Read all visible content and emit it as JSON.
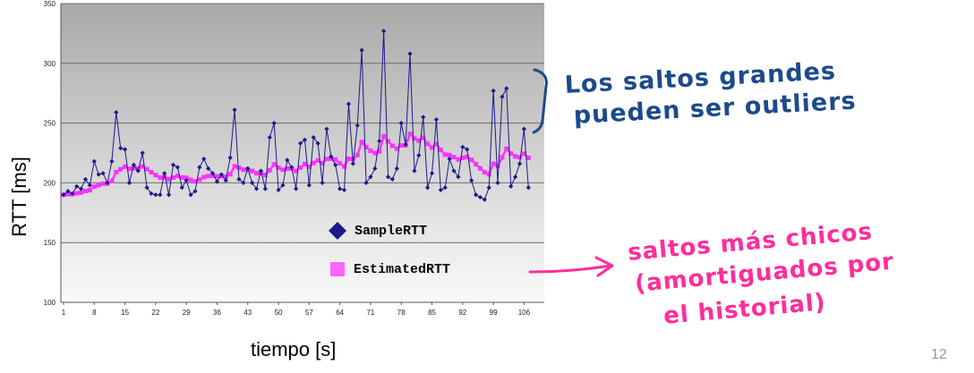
{
  "axis_labels": {
    "y": "RTT [ms]",
    "x": "tiempo [s]"
  },
  "page_number": "12",
  "annotations": {
    "outliers_line1": "Los saltos grandes",
    "outliers_line2": "pueden ser outliers",
    "smooth_line1": "saltos más chicos",
    "smooth_line2": "(amortiguados por",
    "smooth_line3": "el historial)"
  },
  "colors": {
    "sample": "#1a1a8c",
    "estimated": "#ff33ff",
    "annotation_blue": "#1c4a8a",
    "annotation_pink": "#ff2d9b"
  },
  "chart_data": {
    "type": "line",
    "xlabel": "tiempo [s]",
    "ylabel": "RTT [ms]",
    "ylim": [
      100,
      350
    ],
    "xlim": [
      1,
      110
    ],
    "yticks": [
      100,
      150,
      200,
      250,
      300,
      350
    ],
    "xticks": [
      1,
      8,
      15,
      22,
      29,
      36,
      43,
      50,
      57,
      64,
      71,
      78,
      85,
      92,
      99,
      106
    ],
    "grid": "horizontal",
    "legend_position": "center-right",
    "series": [
      {
        "name": "SampleRTT",
        "marker": "diamond",
        "values": [
          190,
          193,
          191,
          197,
          195,
          203,
          198,
          218,
          207,
          208,
          200,
          218,
          259,
          229,
          228,
          200,
          215,
          210,
          225,
          196,
          191,
          190,
          190,
          208,
          190,
          215,
          213,
          196,
          202,
          190,
          193,
          213,
          220,
          212,
          208,
          201,
          207,
          202,
          221,
          261,
          203,
          200,
          212,
          200,
          195,
          210,
          195,
          238,
          250,
          194,
          198,
          219,
          213,
          195,
          233,
          236,
          198,
          238,
          233,
          200,
          245,
          222,
          215,
          195,
          194,
          266,
          216,
          248,
          311,
          200,
          205,
          212,
          235,
          327,
          205,
          203,
          212,
          250,
          232,
          308,
          210,
          223,
          255,
          196,
          208,
          253,
          194,
          196,
          220,
          210,
          205,
          230,
          228,
          202,
          190,
          188,
          186,
          196,
          277,
          200,
          272,
          279,
          197,
          205,
          216,
          245,
          196
        ]
      },
      {
        "name": "EstimatedRTT",
        "marker": "square",
        "values": [
          190,
          190.4,
          190.5,
          191.3,
          191.8,
          193.2,
          193.8,
          196.8,
          198.0,
          199.3,
          199.4,
          201.7,
          208.9,
          211.4,
          213.5,
          211.8,
          212.2,
          212.0,
          213.7,
          211.5,
          208.9,
          206.5,
          204.4,
          204.9,
          203.0,
          204.5,
          205.8,
          204.5,
          204.2,
          202.4,
          201.2,
          202.7,
          204.8,
          205.7,
          206.0,
          205.4,
          205.6,
          205.1,
          207.2,
          213.9,
          212.6,
          211.0,
          211.3,
          209.9,
          208.0,
          208.3,
          206.6,
          210.5,
          215.4,
          212.7,
          210.9,
          211.9,
          212.0,
          209.9,
          212.8,
          215.7,
          213.5,
          216.6,
          218.7,
          216.4,
          220.0,
          220.2,
          219.5,
          216.4,
          213.6,
          220.2,
          219.7,
          223.2,
          234.2,
          229.9,
          226.8,
          225.0,
          226.3,
          239.0,
          234.8,
          231.0,
          228.6,
          231.3,
          231.4,
          241.0,
          237.1,
          235.3,
          237.8,
          232.6,
          229.5,
          232.4,
          227.6,
          223.6,
          223.2,
          221.6,
          219.5,
          220.9,
          221.8,
          219.3,
          215.6,
          212.1,
          208.8,
          207.2,
          215.9,
          214.0,
          221.3,
          228.5,
          224.6,
          222.1,
          221.4,
          224.4,
          220.9
        ]
      }
    ]
  }
}
